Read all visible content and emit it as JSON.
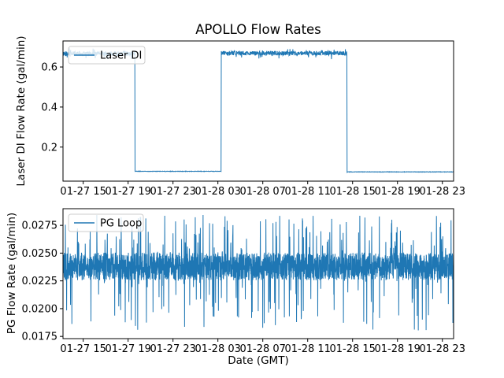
{
  "figure": {
    "title": "APOLLO Flow Rates",
    "xlabel": "Date (GMT)",
    "background": "#ffffff"
  },
  "chart_data": [
    {
      "type": "line",
      "name": "Laser DI",
      "legend_label": "Laser DI",
      "ylabel": "Laser DI Flow Rate (gal/min)",
      "line_color": "#1f77b4",
      "grid": false,
      "legend_position": "upper left",
      "xlim_hours": [
        13.2,
        48.0
      ],
      "x_ticks_hours": [
        15,
        19,
        23,
        27,
        31,
        35,
        39,
        43,
        47
      ],
      "x_tick_labels": [
        "01-27 15",
        "01-27 19",
        "01-27 23",
        "01-28 03",
        "01-28 07",
        "01-28 11",
        "01-28 15",
        "01-28 19",
        "01-28 23"
      ],
      "ylim": [
        0.03,
        0.73
      ],
      "y_ticks": [
        0.2,
        0.4,
        0.6
      ],
      "y_tick_labels": [
        "0.2",
        "0.4",
        "0.6"
      ],
      "points_count": 1600,
      "segments": [
        {
          "start_hour": 13.2,
          "end_hour": 19.6,
          "level": 0.667,
          "noise": 0.011,
          "spike": 0.02
        },
        {
          "start_hour": 19.6,
          "end_hour": 27.3,
          "level": 0.079,
          "noise": 0.0012,
          "spike": 0
        },
        {
          "start_hour": 27.3,
          "end_hour": 38.5,
          "level": 0.669,
          "noise": 0.011,
          "spike": 0.02
        },
        {
          "start_hour": 38.5,
          "end_hour": 48.0,
          "level": 0.076,
          "noise": 0.0012,
          "spike": 0
        }
      ]
    },
    {
      "type": "line",
      "name": "PG Loop",
      "legend_label": "PG Loop",
      "ylabel": "PG Flow Rate (gal/min)",
      "line_color": "#1f77b4",
      "grid": false,
      "legend_position": "upper left",
      "xlim_hours": [
        13.2,
        48.0
      ],
      "x_ticks_hours": [
        15,
        19,
        23,
        27,
        31,
        35,
        39,
        43,
        47
      ],
      "x_tick_labels": [
        "01-27 15",
        "01-27 19",
        "01-27 23",
        "01-28 03",
        "01-28 07",
        "01-28 11",
        "01-28 15",
        "01-28 19",
        "01-28 23"
      ],
      "ylim": [
        0.0173,
        0.029
      ],
      "y_ticks": [
        0.0175,
        0.02,
        0.0225,
        0.025,
        0.0275
      ],
      "y_tick_labels": [
        "0.0175",
        "0.0200",
        "0.0225",
        "0.0250",
        "0.0275"
      ],
      "points_count": 2600,
      "baseline": {
        "band_low": 0.02255,
        "band_high": 0.02505,
        "spike_up_max": 0.0285,
        "spike_down_min": 0.018,
        "spike_up_prob": 0.05,
        "spike_down_prob": 0.05
      }
    }
  ]
}
